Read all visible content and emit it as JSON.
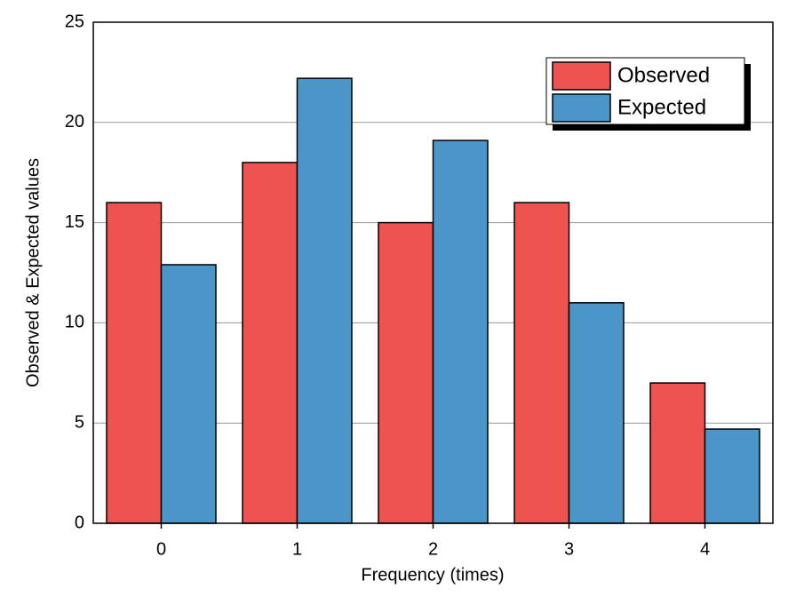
{
  "chart_data": {
    "type": "bar",
    "x_label": "Frequency (times)",
    "y_label": "Observed & Expected values",
    "categories": [
      "0",
      "1",
      "2",
      "3",
      "4"
    ],
    "series": [
      {
        "name": "Observed",
        "color": "#ef5350",
        "values": [
          16,
          18,
          15,
          16,
          7
        ]
      },
      {
        "name": "Expected",
        "color": "#4b95c9",
        "values": [
          12.9,
          22.2,
          19.1,
          11.0,
          4.7
        ]
      }
    ],
    "ylim": [
      0,
      25
    ],
    "yticks": [
      0,
      5,
      10,
      15,
      20,
      25
    ],
    "grid": true,
    "legend": "upper right"
  }
}
